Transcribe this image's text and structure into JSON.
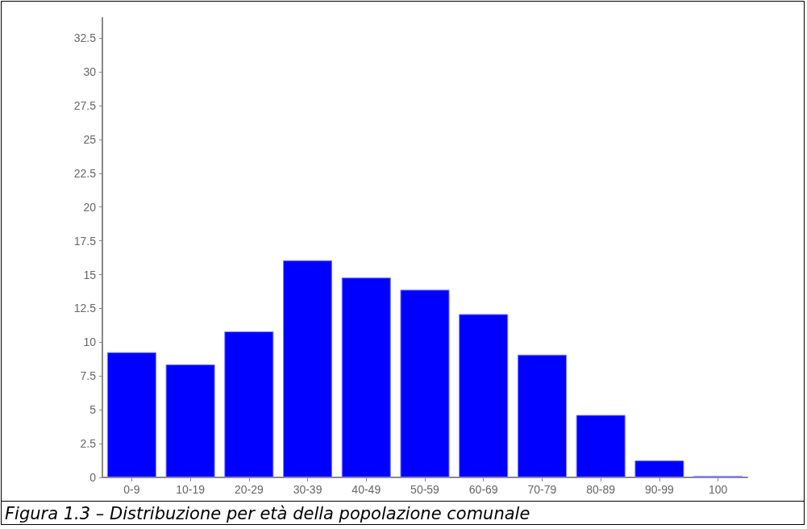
{
  "chart_data": {
    "type": "bar",
    "categories": [
      "0-9",
      "10-19",
      "20-29",
      "30-39",
      "40-49",
      "50-59",
      "60-69",
      "70-79",
      "80-89",
      "90-99",
      "100"
    ],
    "values": [
      9.26,
      8.36,
      10.8,
      16.06,
      14.78,
      13.88,
      12.08,
      9.08,
      4.62,
      1.26,
      0.1
    ],
    "color": "#0000ff",
    "ylim": [
      0,
      34
    ],
    "yticks": [
      0,
      2.5,
      5,
      7.5,
      10,
      12.5,
      15,
      17.5,
      20,
      22.5,
      25,
      27.5,
      30,
      32.5
    ],
    "grid": false,
    "annotations": [
      "Figura 1.3 – Distribuzione per età della popolazione comunale"
    ]
  }
}
